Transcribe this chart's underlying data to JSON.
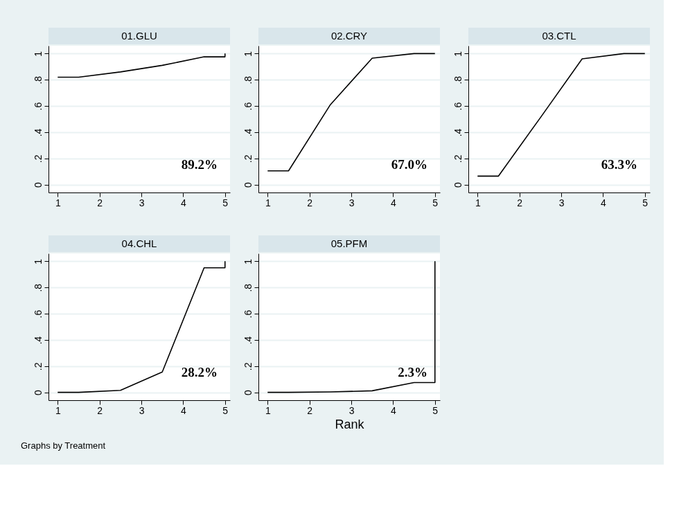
{
  "chart_data": [
    {
      "type": "line",
      "title": "01.GLU",
      "x": [
        1,
        1.5,
        2.5,
        3.5,
        4.5,
        5,
        5
      ],
      "series": [
        {
          "color": "#000000",
          "values": [
            0.82,
            0.82,
            0.86,
            0.91,
            0.975,
            0.975,
            1
          ]
        }
      ],
      "xlim": [
        0.78,
        5.12
      ],
      "xticks": [
        1,
        2,
        3,
        4,
        5
      ],
      "ylim": [
        -0.06,
        1.06
      ],
      "yticks": [
        {
          "value": 0,
          "label": "0"
        },
        {
          "value": 0.2,
          "label": ".2"
        },
        {
          "value": 0.4,
          "label": ".4"
        },
        {
          "value": 0.6,
          "label": ".6"
        },
        {
          "value": 0.8,
          "label": ".8"
        },
        {
          "value": 1,
          "label": "1"
        }
      ],
      "grid": "y",
      "annotations": [
        "89.2%"
      ]
    },
    {
      "type": "line",
      "title": "02.CRY",
      "x": [
        1,
        1.5,
        2.5,
        3.5,
        4.5,
        5
      ],
      "series": [
        {
          "color": "#000000",
          "values": [
            0.105,
            0.105,
            0.61,
            0.965,
            1,
            1
          ]
        }
      ],
      "xlim": [
        0.78,
        5.12
      ],
      "xticks": [
        1,
        2,
        3,
        4,
        5
      ],
      "ylim": [
        -0.06,
        1.06
      ],
      "yticks": [
        {
          "value": 0,
          "label": "0"
        },
        {
          "value": 0.2,
          "label": ".2"
        },
        {
          "value": 0.4,
          "label": ".4"
        },
        {
          "value": 0.6,
          "label": ".6"
        },
        {
          "value": 0.8,
          "label": ".8"
        },
        {
          "value": 1,
          "label": "1"
        }
      ],
      "grid": "y",
      "annotations": [
        "67.0%"
      ]
    },
    {
      "type": "line",
      "title": "03.CTL",
      "x": [
        1,
        1.5,
        2.5,
        3.5,
        4.5,
        5
      ],
      "series": [
        {
          "color": "#000000",
          "values": [
            0.065,
            0.065,
            0.51,
            0.96,
            1,
            1
          ]
        }
      ],
      "xlim": [
        0.78,
        5.12
      ],
      "xticks": [
        1,
        2,
        3,
        4,
        5
      ],
      "ylim": [
        -0.06,
        1.06
      ],
      "yticks": [
        {
          "value": 0,
          "label": "0"
        },
        {
          "value": 0.2,
          "label": ".2"
        },
        {
          "value": 0.4,
          "label": ".4"
        },
        {
          "value": 0.6,
          "label": ".6"
        },
        {
          "value": 0.8,
          "label": ".8"
        },
        {
          "value": 1,
          "label": "1"
        }
      ],
      "grid": "y",
      "annotations": [
        "63.3%"
      ]
    },
    {
      "type": "line",
      "title": "04.CHL",
      "x": [
        1,
        1.5,
        2.5,
        3.5,
        4.5,
        5,
        5
      ],
      "series": [
        {
          "color": "#000000",
          "values": [
            0,
            0,
            0.015,
            0.155,
            0.95,
            0.95,
            1
          ]
        }
      ],
      "xlim": [
        0.78,
        5.12
      ],
      "xticks": [
        1,
        2,
        3,
        4,
        5
      ],
      "ylim": [
        -0.06,
        1.06
      ],
      "yticks": [
        {
          "value": 0,
          "label": "0"
        },
        {
          "value": 0.2,
          "label": ".2"
        },
        {
          "value": 0.4,
          "label": ".4"
        },
        {
          "value": 0.6,
          "label": ".6"
        },
        {
          "value": 0.8,
          "label": ".8"
        },
        {
          "value": 1,
          "label": "1"
        }
      ],
      "grid": "y",
      "annotations": [
        "28.2%",
        "Graphs by Treatment"
      ]
    },
    {
      "type": "line",
      "title": "05.PFM",
      "xlabel": "Rank",
      "x": [
        1,
        1.5,
        2.5,
        3.5,
        4.5,
        5,
        5
      ],
      "series": [
        {
          "color": "#000000",
          "values": [
            0,
            0,
            0.003,
            0.012,
            0.075,
            0.075,
            1
          ]
        }
      ],
      "xlim": [
        0.78,
        5.12
      ],
      "xticks": [
        1,
        2,
        3,
        4,
        5
      ],
      "ylim": [
        -0.06,
        1.06
      ],
      "yticks": [
        {
          "value": 0,
          "label": "0"
        },
        {
          "value": 0.2,
          "label": ".2"
        },
        {
          "value": 0.4,
          "label": ".4"
        },
        {
          "value": 0.6,
          "label": ".6"
        },
        {
          "value": 0.8,
          "label": ".8"
        },
        {
          "value": 1,
          "label": "1"
        }
      ],
      "grid": "y",
      "annotations": [
        "2.3%"
      ]
    }
  ]
}
